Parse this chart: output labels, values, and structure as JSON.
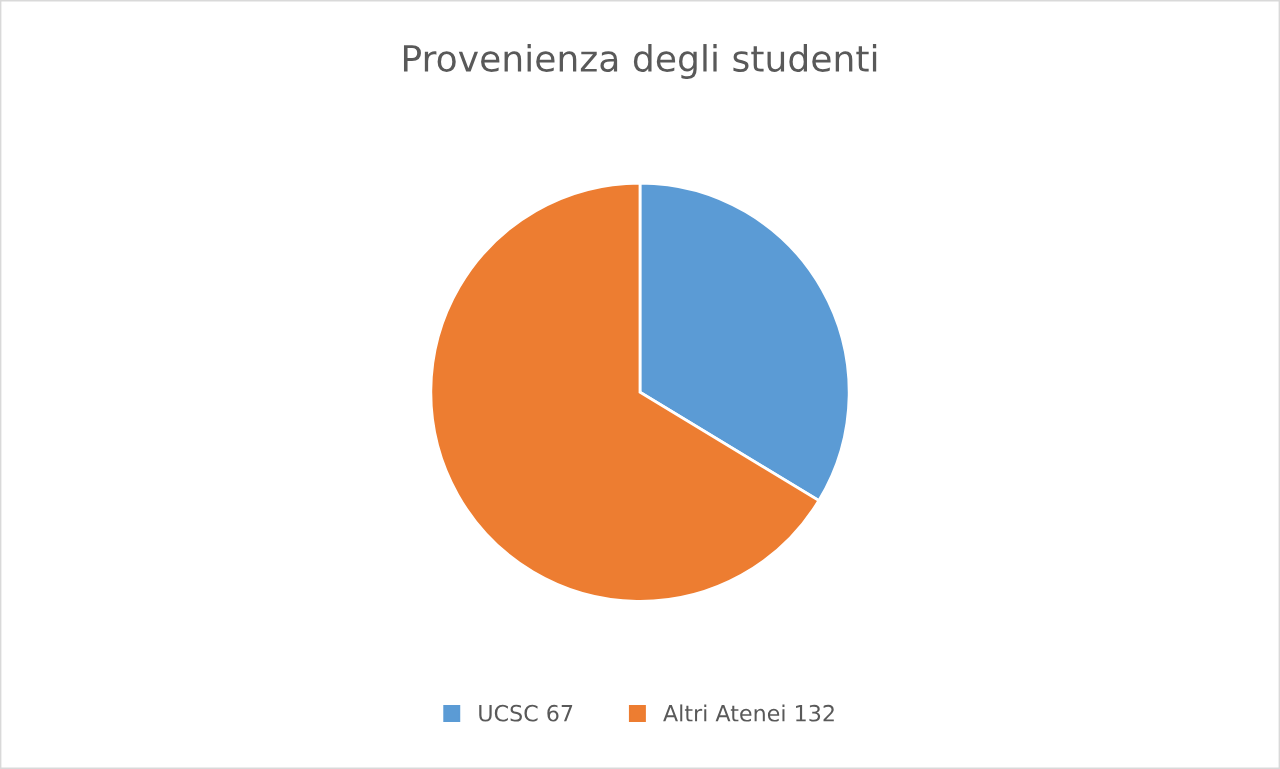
{
  "chart_data": {
    "type": "pie",
    "title": "Provenienza degli studenti",
    "categories": [
      "UCSC 67",
      "Altri Atenei 132"
    ],
    "values": [
      67,
      132
    ],
    "colors": [
      "#5b9bd5",
      "#ed7d31"
    ],
    "legend": "bottom"
  }
}
